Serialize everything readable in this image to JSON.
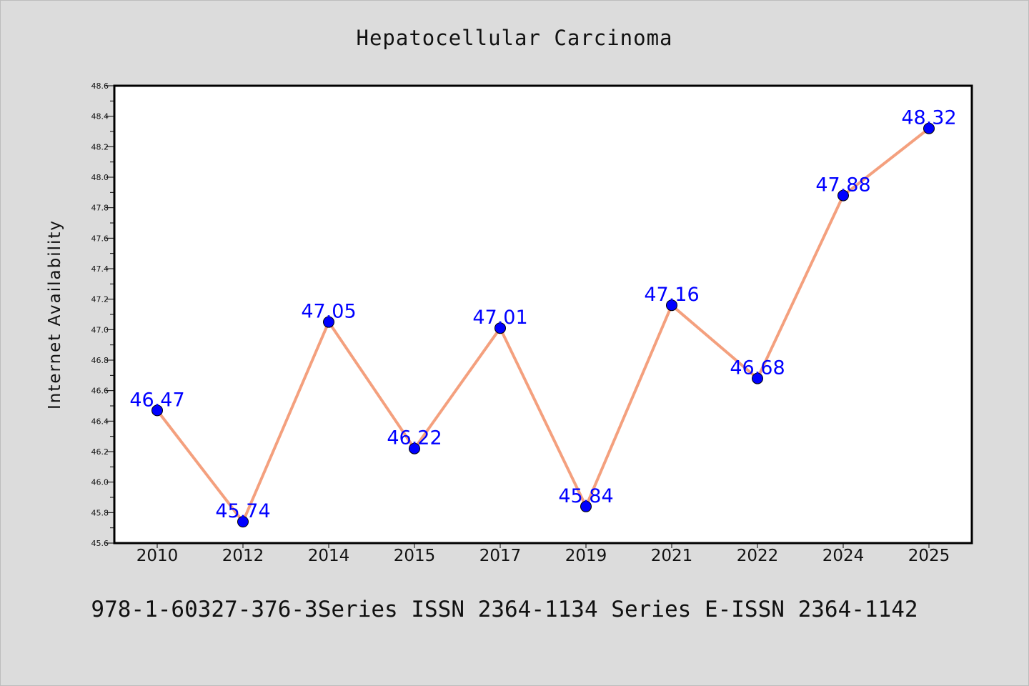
{
  "chart_data": {
    "type": "line",
    "title": "Hepatocellular Carcinoma",
    "xlabel": "",
    "ylabel": "Internet Availability",
    "categories": [
      "2010",
      "2012",
      "2014",
      "2015",
      "2017",
      "2019",
      "2021",
      "2022",
      "2024",
      "2025"
    ],
    "series": [
      {
        "values": [
          46.47,
          45.74,
          47.05,
          46.22,
          47.01,
          45.84,
          47.16,
          46.68,
          47.88,
          48.32
        ],
        "labels": [
          "46.47",
          "45.74",
          "47.05",
          "46.22",
          "47.01",
          "45.84",
          "47.16",
          "46.68",
          "47.88",
          "48.32"
        ]
      }
    ],
    "ylim": [
      45.6,
      48.6
    ],
    "yticks": [
      "45.6",
      "45.8",
      "46.0",
      "46.2",
      "46.4",
      "46.6",
      "46.8",
      "47.0",
      "47.2",
      "47.4",
      "47.6",
      "47.8",
      "48.0",
      "48.2",
      "48.4",
      "48.6"
    ],
    "grid": false,
    "legend": "none",
    "colors": {
      "background": "#dcdcdc",
      "plot_background": "#ffffff",
      "line": "#f4a07e",
      "marker": "#0000ff",
      "data_label": "#0000ff",
      "axis": "#000000"
    }
  },
  "footer_text": "978-1-60327-376-3Series ISSN 2364-1134 Series E-ISSN 2364-1142"
}
